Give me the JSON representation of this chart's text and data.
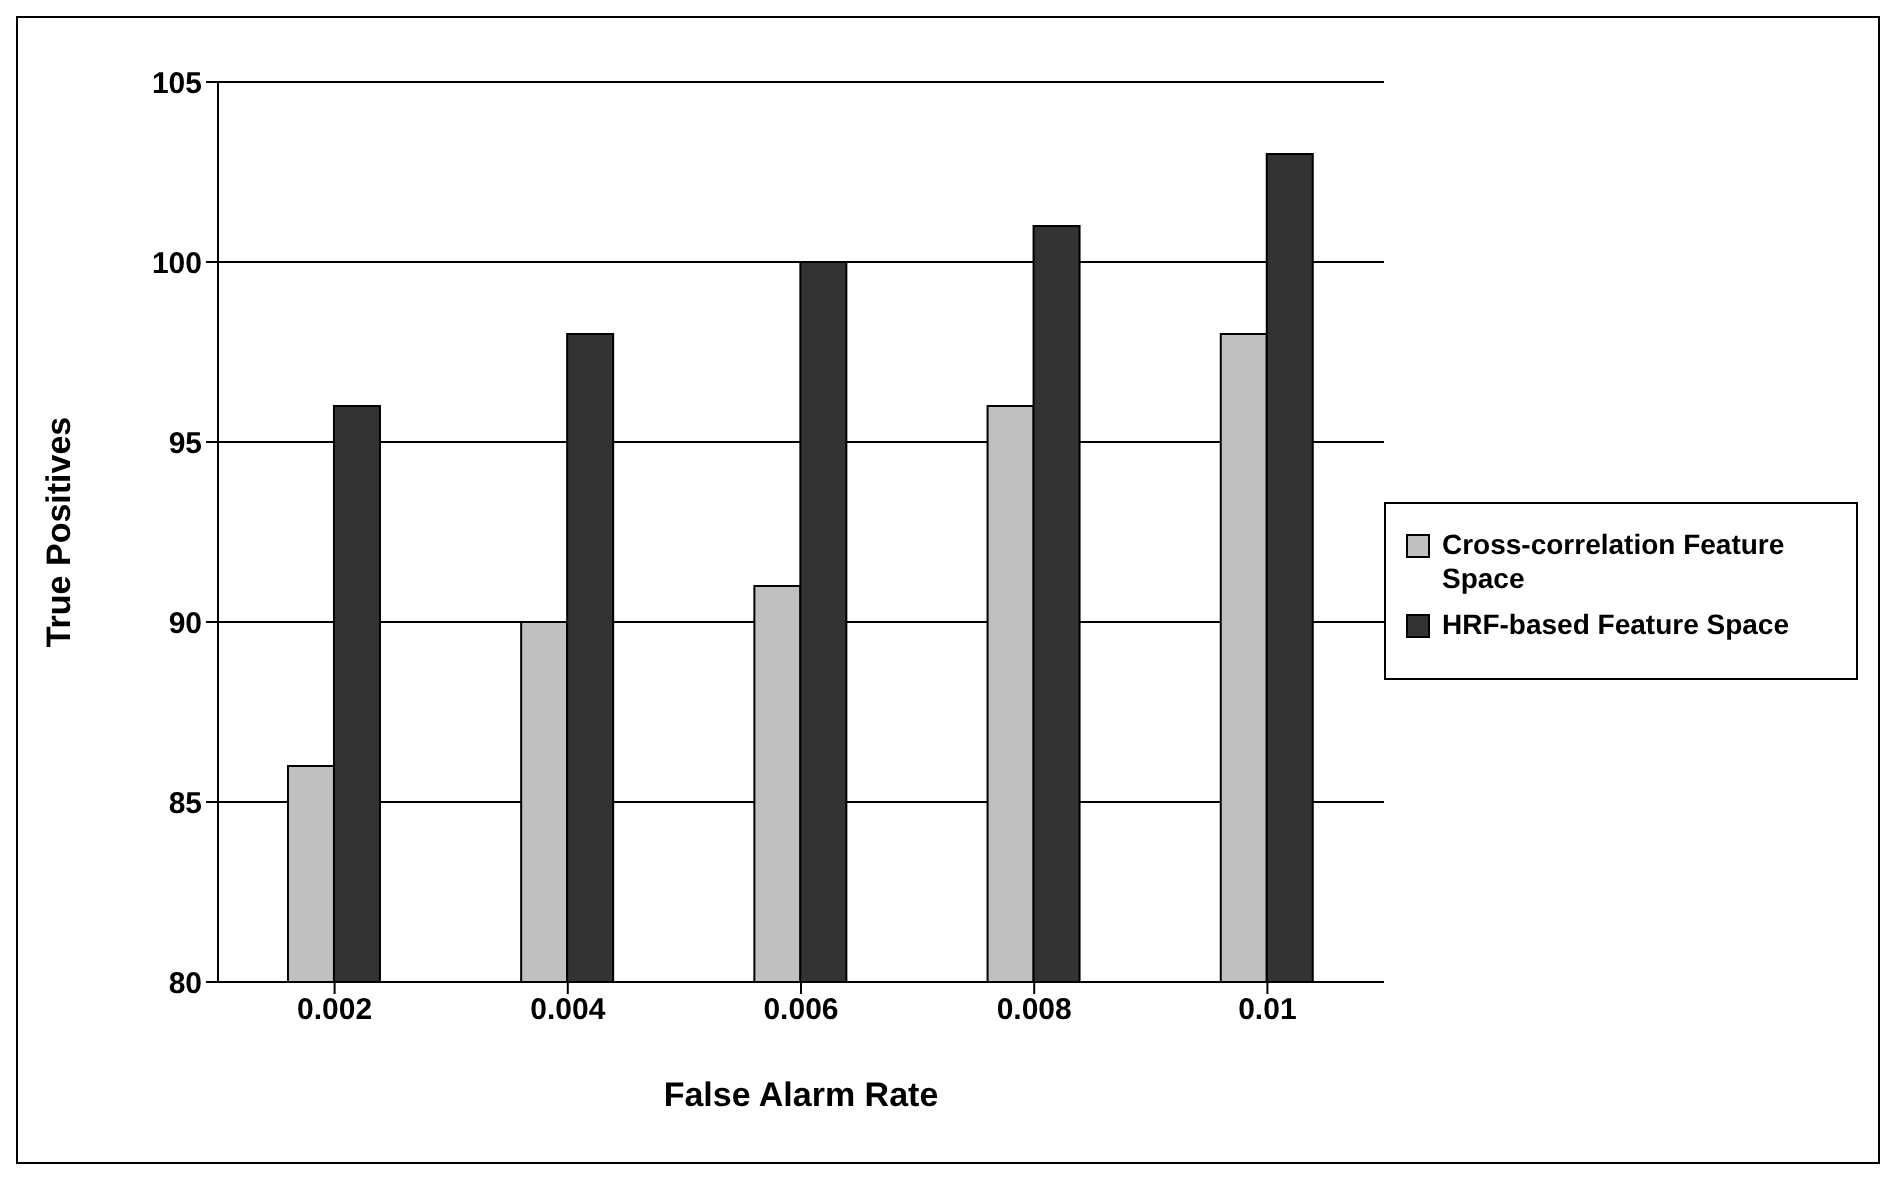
{
  "chart_data": {
    "type": "bar",
    "xlabel": "False Alarm Rate",
    "ylabel": "True Positives",
    "categories": [
      "0.002",
      "0.004",
      "0.006",
      "0.008",
      "0.01"
    ],
    "series": [
      {
        "name": "Cross-correlation Feature Space",
        "color": "#c0c0c0",
        "values": [
          86,
          90,
          91,
          96,
          98
        ]
      },
      {
        "name": "HRF-based Feature Space",
        "color": "#333333",
        "values": [
          96,
          98,
          100,
          101,
          103
        ]
      }
    ],
    "ylim": [
      80,
      105
    ],
    "yticks": [
      80,
      85,
      90,
      95,
      100,
      105
    ],
    "grid": "y",
    "legend": "right"
  }
}
